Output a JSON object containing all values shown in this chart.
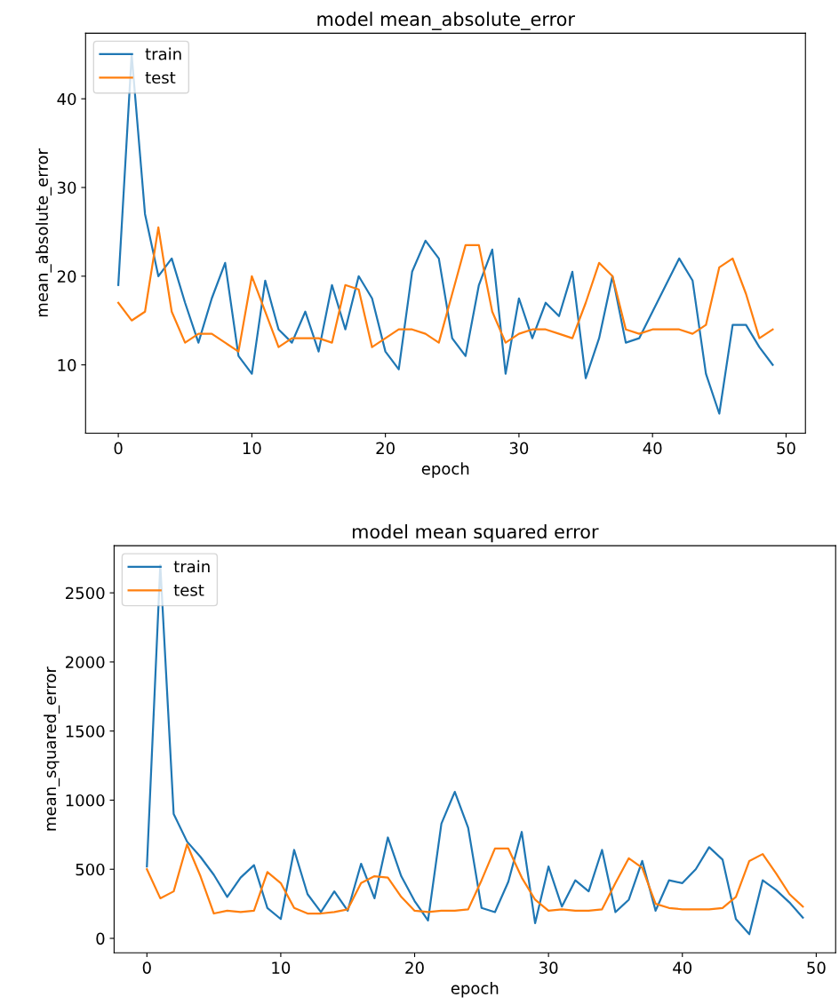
{
  "chart_data": [
    {
      "type": "line",
      "title": "model mean_absolute_error",
      "xlabel": "epoch",
      "ylabel": "mean_absolute_error",
      "x": [
        0,
        1,
        2,
        3,
        4,
        5,
        6,
        7,
        8,
        9,
        10,
        11,
        12,
        13,
        14,
        15,
        16,
        17,
        18,
        19,
        20,
        21,
        22,
        23,
        24,
        25,
        26,
        27,
        28,
        29,
        30,
        31,
        32,
        33,
        34,
        35,
        36,
        37,
        38,
        39,
        40,
        41,
        42,
        43,
        44,
        45,
        46,
        47,
        48,
        49
      ],
      "series": [
        {
          "name": "train",
          "color": "#1f77b4",
          "values": [
            19,
            45,
            27,
            20,
            22,
            17,
            12.5,
            17.5,
            21.5,
            11,
            9,
            19.5,
            14,
            12.5,
            16,
            11.5,
            19,
            14,
            20,
            17.5,
            11.5,
            9.5,
            20.5,
            24,
            22,
            13,
            11,
            19,
            23,
            9,
            17.5,
            13,
            17,
            15.5,
            20.5,
            8.5,
            13,
            20,
            12.5,
            13,
            16,
            19,
            22,
            19.5,
            9,
            4.5,
            14.5,
            14.5,
            12,
            10
          ]
        },
        {
          "name": "test",
          "color": "#ff7f0e",
          "values": [
            17,
            15,
            16,
            25.5,
            16,
            12.5,
            13.5,
            13.5,
            12.5,
            11.5,
            20,
            16,
            12,
            13,
            13,
            13,
            12.5,
            19,
            18.5,
            12,
            13,
            14,
            14,
            13.5,
            12.5,
            18,
            23.5,
            23.5,
            16,
            12.5,
            13.5,
            14,
            14,
            13.5,
            13,
            17,
            21.5,
            20,
            14,
            13.5,
            14,
            14,
            14,
            13.5,
            14.5,
            21,
            22,
            18,
            13,
            14
          ]
        }
      ],
      "xlim": [
        -2.45,
        51.45
      ],
      "xticks": [
        0,
        10,
        20,
        30,
        40,
        50
      ],
      "ylim": [
        2.3,
        47.4
      ],
      "yticks": [
        10,
        20,
        30,
        40
      ],
      "legend": "top left",
      "grid": false
    },
    {
      "type": "line",
      "title": "model mean squared error",
      "xlabel": "epoch",
      "ylabel": "mean_squared_error",
      "x": [
        0,
        1,
        2,
        3,
        4,
        5,
        6,
        7,
        8,
        9,
        10,
        11,
        12,
        13,
        14,
        15,
        16,
        17,
        18,
        19,
        20,
        21,
        22,
        23,
        24,
        25,
        26,
        27,
        28,
        29,
        30,
        31,
        32,
        33,
        34,
        35,
        36,
        37,
        38,
        39,
        40,
        41,
        42,
        43,
        44,
        45,
        46,
        47,
        48,
        49
      ],
      "series": [
        {
          "name": "train",
          "color": "#1f77b4",
          "values": [
            520,
            2700,
            900,
            700,
            590,
            460,
            300,
            440,
            530,
            220,
            140,
            640,
            320,
            190,
            340,
            200,
            540,
            290,
            730,
            450,
            270,
            130,
            830,
            1060,
            800,
            220,
            190,
            410,
            770,
            110,
            520,
            230,
            420,
            340,
            640,
            190,
            280,
            560,
            200,
            420,
            400,
            500,
            660,
            570,
            140,
            30,
            420,
            350,
            260,
            150
          ]
        },
        {
          "name": "test",
          "color": "#ff7f0e",
          "values": [
            500,
            290,
            340,
            680,
            450,
            180,
            200,
            190,
            200,
            480,
            400,
            220,
            180,
            180,
            190,
            210,
            400,
            450,
            440,
            300,
            200,
            190,
            200,
            200,
            210,
            420,
            650,
            650,
            440,
            280,
            200,
            210,
            200,
            200,
            210,
            400,
            580,
            510,
            250,
            220,
            210,
            210,
            210,
            220,
            300,
            560,
            610,
            470,
            320,
            230
          ]
        }
      ],
      "xlim": [
        -2.45,
        51.45
      ],
      "xticks": [
        0,
        10,
        20,
        30,
        40,
        50
      ],
      "ylim": [
        -104,
        2841
      ],
      "yticks": [
        0,
        500,
        1000,
        1500,
        2000,
        2500
      ],
      "legend": "top left",
      "grid": false
    }
  ]
}
